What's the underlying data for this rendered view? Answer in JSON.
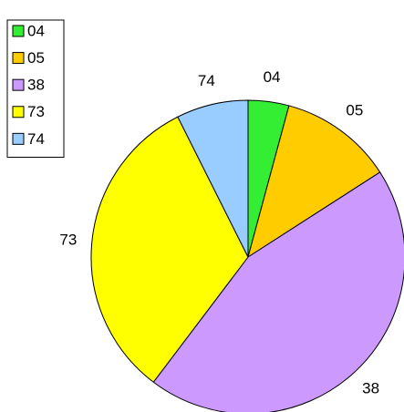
{
  "chart_data": {
    "type": "pie",
    "categories": [
      "04",
      "05",
      "38",
      "73",
      "74"
    ],
    "values": [
      4.2,
      11.7,
      44.4,
      32.3,
      7.4
    ],
    "colors": [
      "#33ee33",
      "#ffcc00",
      "#cc99ff",
      "#ffff00",
      "#99ccff"
    ],
    "legend": "top-left"
  }
}
